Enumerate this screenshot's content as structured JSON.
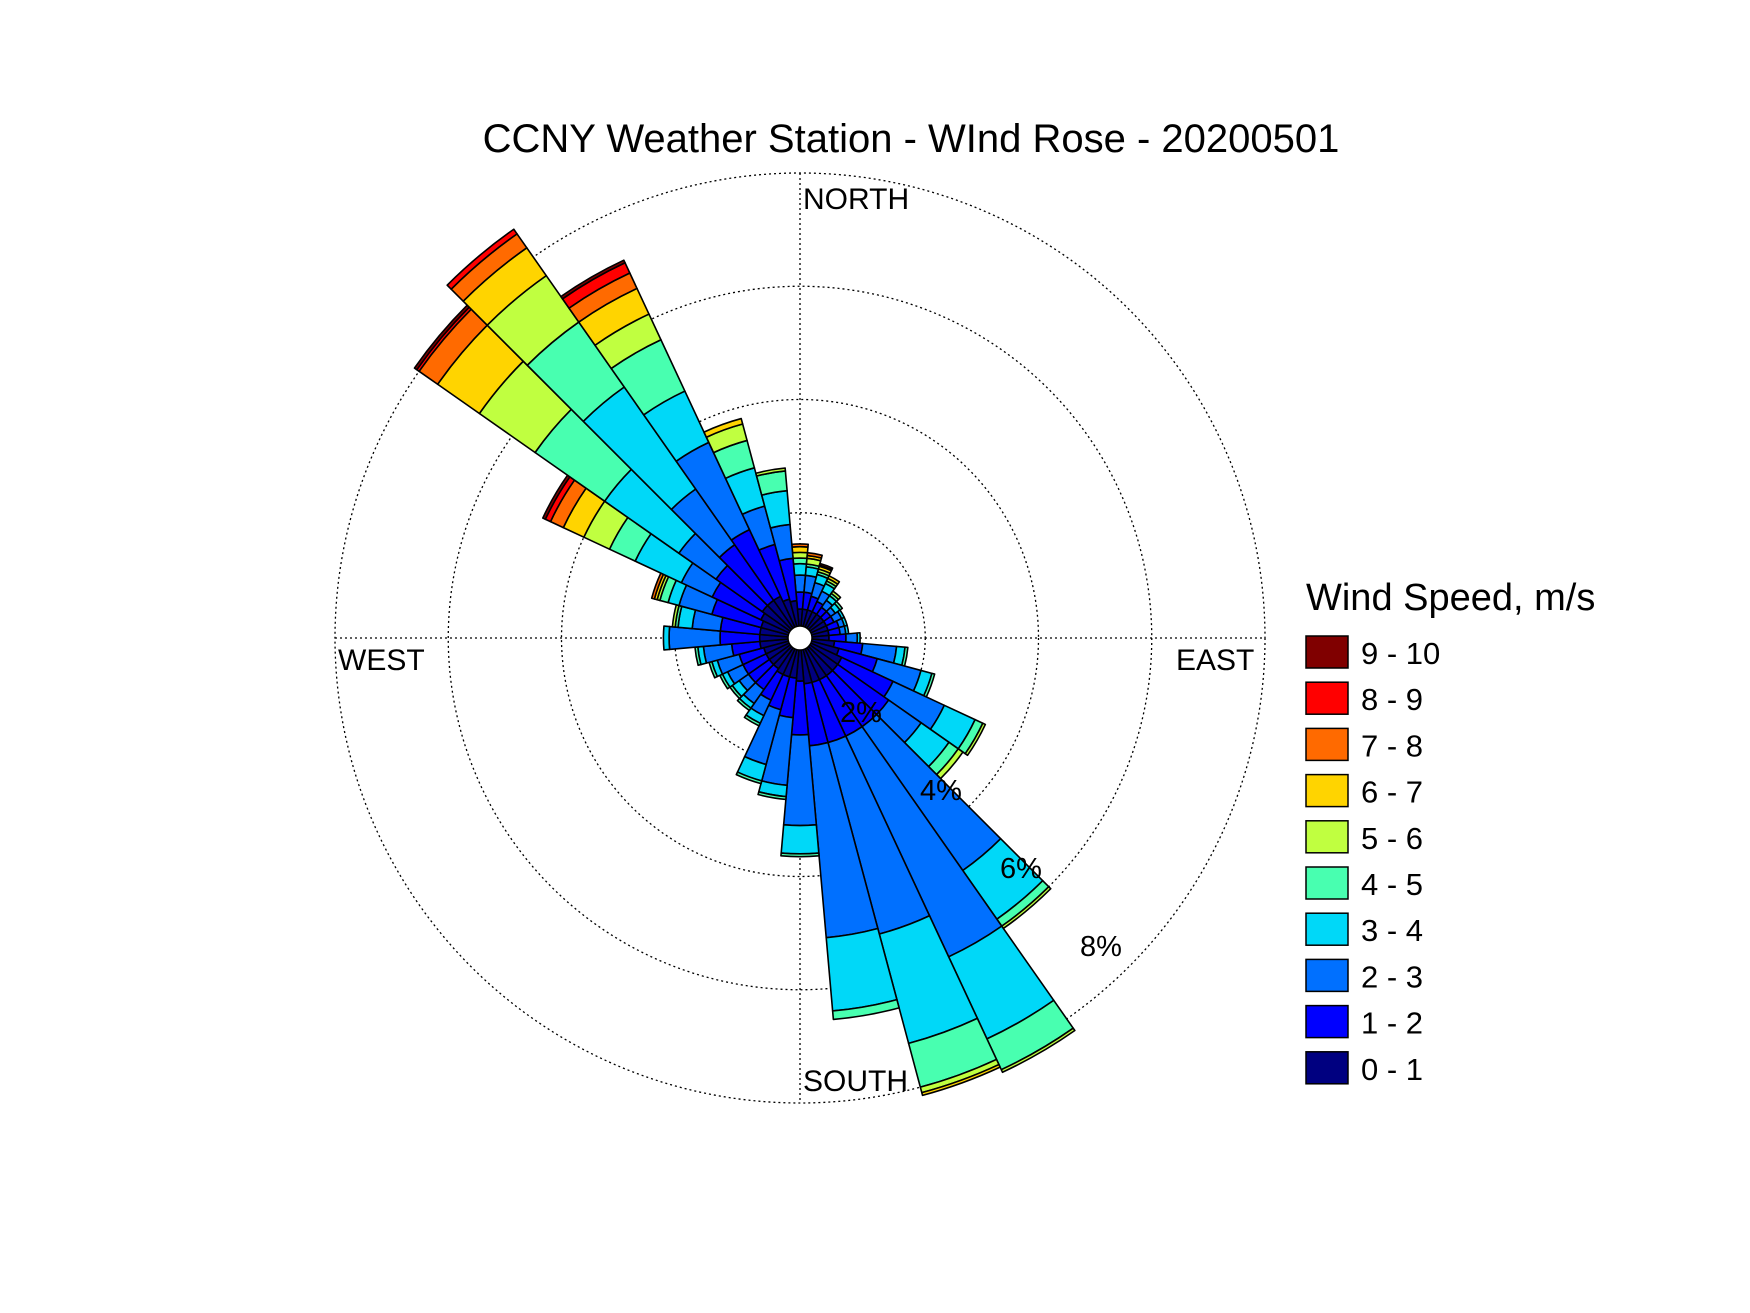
{
  "chart_data": {
    "type": "windrose",
    "title": "CCNY Weather Station - WInd Rose - 20200501",
    "direction_labels": {
      "north": "NORTH",
      "south": "SOUTH",
      "east": "EAST",
      "west": "WEST"
    },
    "ring_values": [
      2,
      4,
      6,
      8
    ],
    "ring_labels": [
      "2%",
      "4%",
      "6%",
      "8%"
    ],
    "radial_max": 8,
    "legend": {
      "title": "Wind Speed, m/s",
      "bins": [
        "9 - 10",
        "8 - 9",
        "7 - 8",
        "6 - 7",
        "5 - 6",
        "4 - 5",
        "3 - 4",
        "2 - 3",
        "1 - 2",
        "0 - 1"
      ],
      "colors": [
        "#800000",
        "#ff0000",
        "#ff6a00",
        "#ffd400",
        "#c0ff40",
        "#48ffb0",
        "#00d8f8",
        "#0070ff",
        "#0000ff",
        "#000080"
      ]
    },
    "sector_width_deg": 10,
    "sectors": [
      {
        "dir": 0,
        "cum": [
          0.3,
          0.6,
          0.9,
          1.1,
          1.2,
          1.3,
          1.4,
          1.45,
          1.45,
          1.45
        ]
      },
      {
        "dir": 10,
        "cum": [
          0.3,
          0.6,
          0.9,
          1.05,
          1.1,
          1.2,
          1.25,
          1.3,
          1.3,
          1.3
        ]
      },
      {
        "dir": 20,
        "cum": [
          0.3,
          0.55,
          0.8,
          0.95,
          1.0,
          1.05,
          1.1,
          1.12,
          1.15,
          1.15
        ]
      },
      {
        "dir": 30,
        "cum": [
          0.3,
          0.5,
          0.7,
          0.85,
          0.9,
          0.95,
          1.0,
          1.0,
          1.0,
          1.0
        ]
      },
      {
        "dir": 40,
        "cum": [
          0.3,
          0.45,
          0.6,
          0.7,
          0.75,
          0.8,
          0.8,
          0.8,
          0.8,
          0.8
        ]
      },
      {
        "dir": 50,
        "cum": [
          0.3,
          0.45,
          0.55,
          0.65,
          0.7,
          0.7,
          0.7,
          0.7,
          0.7,
          0.7
        ]
      },
      {
        "dir": 60,
        "cum": [
          0.3,
          0.45,
          0.6,
          0.65,
          0.65,
          0.65,
          0.65,
          0.65,
          0.65,
          0.65
        ]
      },
      {
        "dir": 70,
        "cum": [
          0.3,
          0.5,
          0.6,
          0.65,
          0.65,
          0.65,
          0.65,
          0.65,
          0.65,
          0.65
        ]
      },
      {
        "dir": 80,
        "cum": [
          0.3,
          0.5,
          0.6,
          0.65,
          0.65,
          0.65,
          0.65,
          0.65,
          0.65,
          0.65
        ]
      },
      {
        "dir": 90,
        "cum": [
          0.3,
          0.6,
          0.8,
          0.85,
          0.85,
          0.85,
          0.85,
          0.85,
          0.85,
          0.85
        ]
      },
      {
        "dir": 100,
        "cum": [
          0.4,
          0.9,
          1.5,
          1.65,
          1.7,
          1.7,
          1.7,
          1.7,
          1.7,
          1.7
        ]
      },
      {
        "dir": 110,
        "cum": [
          0.5,
          1.2,
          2.0,
          2.2,
          2.25,
          2.25,
          2.25,
          2.25,
          2.25,
          2.25
        ]
      },
      {
        "dir": 120,
        "cum": [
          0.6,
          1.6,
          2.6,
          3.2,
          3.35,
          3.4,
          3.4,
          3.4,
          3.4,
          3.4
        ]
      },
      {
        "dir": 130,
        "cum": [
          0.6,
          1.7,
          2.4,
          3.0,
          3.2,
          3.3,
          3.3,
          3.3,
          3.3,
          3.3
        ]
      },
      {
        "dir": 140,
        "cum": [
          0.6,
          1.7,
          4.8,
          5.85,
          6.0,
          6.05,
          6.05,
          6.05,
          6.05,
          6.05
        ]
      },
      {
        "dir": 150,
        "cum": [
          0.6,
          1.7,
          6.0,
          7.6,
          8.2,
          8.25,
          8.25,
          8.25,
          8.25,
          8.25
        ]
      },
      {
        "dir": 160,
        "cum": [
          0.6,
          1.7,
          5.2,
          7.2,
          8.0,
          8.1,
          8.15,
          8.15,
          8.15,
          8.15
        ]
      },
      {
        "dir": 170,
        "cum": [
          0.6,
          1.7,
          5.1,
          6.4,
          6.55,
          6.55,
          6.55,
          6.55,
          6.55,
          6.55
        ]
      },
      {
        "dir": 180,
        "cum": [
          0.55,
          1.5,
          3.1,
          3.6,
          3.65,
          3.65,
          3.65,
          3.65,
          3.65,
          3.65
        ]
      },
      {
        "dir": 190,
        "cum": [
          0.5,
          1.2,
          2.4,
          2.6,
          2.65,
          2.65,
          2.65,
          2.65,
          2.65,
          2.65
        ]
      },
      {
        "dir": 200,
        "cum": [
          0.5,
          1.1,
          2.1,
          2.4,
          2.45,
          2.45,
          2.45,
          2.45,
          2.45,
          2.45
        ]
      },
      {
        "dir": 210,
        "cum": [
          0.5,
          1.0,
          1.3,
          1.45,
          1.5,
          1.5,
          1.5,
          1.5,
          1.5,
          1.5
        ]
      },
      {
        "dir": 220,
        "cum": [
          0.45,
          0.9,
          1.2,
          1.3,
          1.35,
          1.35,
          1.35,
          1.35,
          1.35,
          1.35
        ]
      },
      {
        "dir": 230,
        "cum": [
          0.45,
          0.9,
          1.1,
          1.25,
          1.3,
          1.3,
          1.3,
          1.3,
          1.3,
          1.3
        ]
      },
      {
        "dir": 240,
        "cum": [
          0.45,
          0.9,
          1.2,
          1.3,
          1.35,
          1.35,
          1.35,
          1.35,
          1.35,
          1.35
        ]
      },
      {
        "dir": 250,
        "cum": [
          0.45,
          0.9,
          1.3,
          1.4,
          1.45,
          1.45,
          1.45,
          1.45,
          1.45,
          1.45
        ]
      },
      {
        "dir": 260,
        "cum": [
          0.5,
          1.0,
          1.5,
          1.6,
          1.65,
          1.65,
          1.65,
          1.65,
          1.65,
          1.65
        ]
      },
      {
        "dir": 270,
        "cum": [
          0.5,
          1.2,
          2.1,
          2.2,
          2.2,
          2.2,
          2.2,
          2.2,
          2.2,
          2.2
        ]
      },
      {
        "dir": 280,
        "cum": [
          0.5,
          1.2,
          1.7,
          1.95,
          2.0,
          2.05,
          2.05,
          2.05,
          2.05,
          2.05
        ]
      },
      {
        "dir": 290,
        "cum": [
          0.5,
          1.4,
          2.0,
          2.2,
          2.35,
          2.4,
          2.45,
          2.5,
          2.5,
          2.5
        ]
      },
      {
        "dir": 300,
        "cum": [
          0.55,
          1.5,
          2.1,
          3.0,
          3.5,
          4.0,
          4.4,
          4.65,
          4.75,
          4.8
        ]
      },
      {
        "dir": 310,
        "cum": [
          0.6,
          1.6,
          2.4,
          4.0,
          5.5,
          6.7,
          7.6,
          8.0,
          8.05,
          8.1
        ]
      },
      {
        "dir": 320,
        "cum": [
          0.6,
          1.8,
          3.0,
          5.2,
          6.6,
          7.6,
          8.2,
          8.5,
          8.6,
          8.6
        ]
      },
      {
        "dir": 330,
        "cum": [
          0.6,
          1.9,
          3.6,
          4.6,
          5.6,
          6.1,
          6.6,
          6.9,
          7.1,
          7.15
        ]
      },
      {
        "dir": 340,
        "cum": [
          0.5,
          1.5,
          2.2,
          2.9,
          3.4,
          3.7,
          3.8,
          3.8,
          3.8,
          3.8
        ]
      },
      {
        "dir": 350,
        "cum": [
          0.45,
          1.2,
          1.8,
          2.4,
          2.75,
          2.8,
          2.8,
          2.8,
          2.8,
          2.8
        ]
      }
    ]
  }
}
